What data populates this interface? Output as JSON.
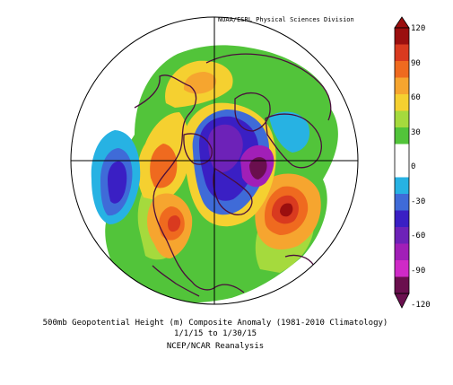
{
  "credit": "NOAA/ESRL Physical Sciences Division",
  "caption": {
    "line1": "500mb Geopotential Height (m) Composite Anomaly (1981-2010 Climatology)",
    "line2": "1/1/15  to 1/30/15",
    "line3": "NCEP/NCAR Reanalysis"
  },
  "colorbar": {
    "ticks": [
      "120",
      "90",
      "60",
      "30",
      "0",
      "-30",
      "-60",
      "-90",
      "-120"
    ],
    "colors": [
      "#9b0f0f",
      "#d93a1f",
      "#ef6a1f",
      "#f6a52f",
      "#f5d030",
      "#a5da3d",
      "#52c43a",
      "#ffffff",
      "#ffffff",
      "#27b2e3",
      "#3f6bd8",
      "#3a1fc4",
      "#6d22b8",
      "#a11fb7",
      "#cf2ac7",
      "#6a0f4e"
    ]
  },
  "colors": {
    "land_outline": "#4a0e3c",
    "grid": "#000000",
    "border": "#000000"
  }
}
